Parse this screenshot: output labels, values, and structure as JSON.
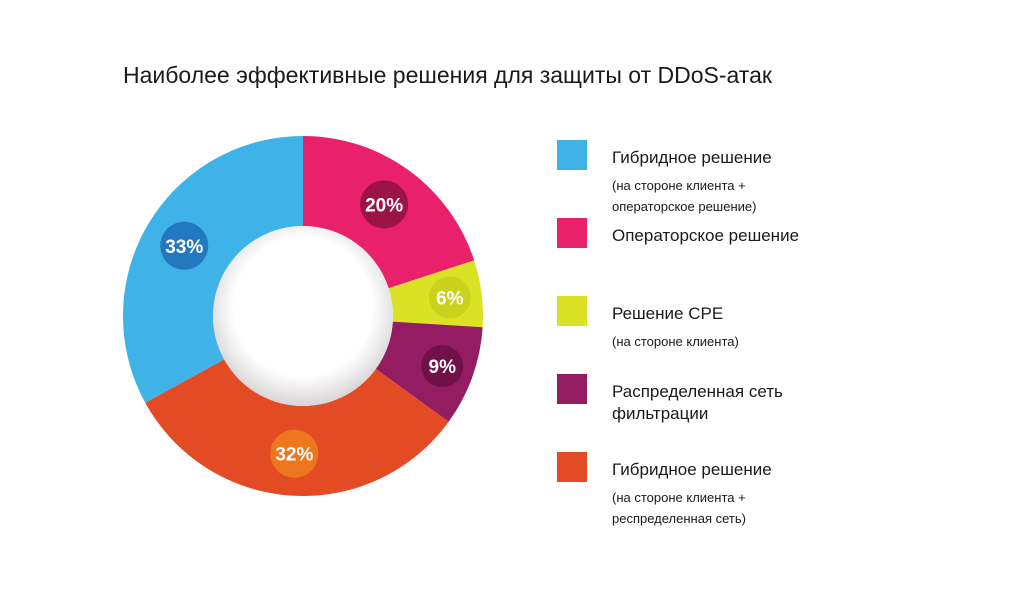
{
  "chart_data": {
    "type": "pie",
    "donut": true,
    "title": "Наиболее эффективные решения для защиты от DDoS-атак",
    "start": "top",
    "direction": "clockwise",
    "slices": [
      {
        "label": "Операторское решение",
        "sub": "",
        "value": 20,
        "data_label": "20%",
        "color": "#e8216a",
        "badge_color": "#8e1040"
      },
      {
        "label": "Решение CPE",
        "sub": "(на стороне клиента)",
        "value": 6,
        "data_label": "6%",
        "color": "#dbe226",
        "badge_color": "#c8cf1a"
      },
      {
        "label": "Распределенная сеть фильтрации",
        "sub": "",
        "value": 9,
        "data_label": "9%",
        "color": "#931c63",
        "badge_color": "#6a0f45"
      },
      {
        "label": "Гибридное решение",
        "sub": "(на стороне клиента + респределенная сеть)",
        "value": 32,
        "data_label": "32%",
        "color": "#e34b25",
        "badge_color": "#f07e1c"
      },
      {
        "label": "Гибридное решение",
        "sub": "(на стороне клиента + операторское решение)",
        "value": 33,
        "data_label": "33%",
        "color": "#3fb2e8",
        "badge_color": "#1f6fb8"
      }
    ],
    "legend": {
      "placement": "right",
      "items": [
        {
          "label": "Гибридное решение",
          "sub1": "(на стороне клиента +",
          "sub2": "операторское решение)",
          "color": "#3fb2e8"
        },
        {
          "label": "Операторское решение",
          "sub1": "",
          "sub2": "",
          "color": "#e8216a"
        },
        {
          "label": "Решение CPE",
          "sub1": "(на стороне клиента)",
          "sub2": "",
          "color": "#dbe226"
        },
        {
          "label": "Распределенная сеть",
          "label2": "фильтрации",
          "sub1": "",
          "sub2": "",
          "color": "#931c63"
        },
        {
          "label": "Гибридное решение",
          "sub1": "(на стороне клиента +",
          "sub2": "респределенная сеть)",
          "color": "#e34b25"
        }
      ]
    }
  }
}
